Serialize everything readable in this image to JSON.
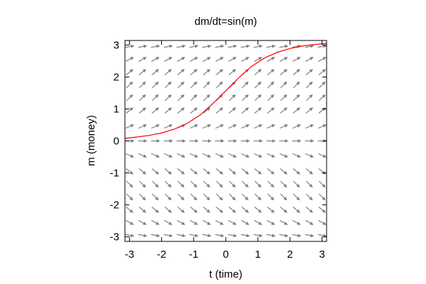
{
  "chart_data": {
    "type": "line",
    "title": "dm/dt=sin(m)",
    "xlabel": "t (time)",
    "ylabel": "m (money)",
    "xlim": [
      -3.1416,
      3.1416
    ],
    "ylim": [
      -3.1416,
      3.1416
    ],
    "x_ticks": [
      -3,
      -2,
      -1,
      0,
      1,
      2,
      3
    ],
    "y_ticks": [
      -3,
      -2,
      -1,
      0,
      1,
      2,
      3
    ],
    "grid": false,
    "vector_field": {
      "equation": "dm/dt = sin(m)",
      "t_grid": [
        -3.0,
        -2.6,
        -2.2,
        -1.8,
        -1.4,
        -1.0,
        -0.6,
        -0.2,
        0.2,
        0.6,
        1.0,
        1.4,
        1.8,
        2.2,
        2.6,
        3.0
      ],
      "m_grid": [
        -2.95,
        -2.55,
        -2.15,
        -1.75,
        -1.35,
        -0.95,
        -0.45,
        0.0,
        0.45,
        0.95,
        1.35,
        1.75,
        2.15,
        2.55,
        2.95
      ],
      "color": "#808080"
    },
    "series": [
      {
        "color": "#ff0000",
        "x": [
          -3.14,
          -2.8,
          -2.4,
          -2.0,
          -1.6,
          -1.2,
          -0.8,
          -0.4,
          0.0,
          0.4,
          0.8,
          1.2,
          1.6,
          2.0,
          2.4,
          2.8,
          3.14
        ],
        "y": [
          0.08,
          0.12,
          0.17,
          0.25,
          0.37,
          0.55,
          0.81,
          1.17,
          1.57,
          1.97,
          2.33,
          2.59,
          2.77,
          2.89,
          2.97,
          3.02,
          3.05
        ]
      }
    ]
  }
}
